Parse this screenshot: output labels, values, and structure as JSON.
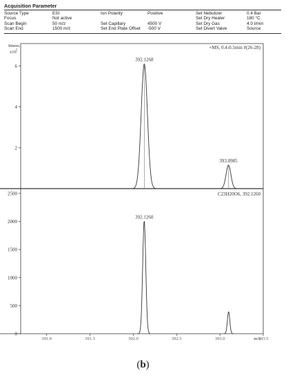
{
  "acquisition": {
    "title": "Acquisition Parameter",
    "rows": [
      [
        "Source Type",
        "ESI",
        "Ion Polarity",
        "Positive",
        "Set Nebulizer",
        "0.4 Bar"
      ],
      [
        "Focus",
        "Not active",
        "",
        "",
        "Set Dry Heater",
        "180 °C"
      ],
      [
        "Scan Begin",
        "50 m/z",
        "Set Capillary",
        "4500 V",
        "Set Dry Gas",
        "4.0 l/min"
      ],
      [
        "Scan End",
        "1500 m/z",
        "Set End Plate Offset",
        "-500 V",
        "Set Divert Valve",
        "Source"
      ]
    ]
  },
  "chart_data": [
    {
      "type": "line",
      "title": "+MS, 0.4-0.5min #(26-28)",
      "ylabel_top": "Intens.",
      "ylabel_exp": "x10",
      "ylabel_exp_power": "5",
      "ylim": [
        0,
        7.1
      ],
      "yticks": [
        0,
        2,
        4,
        6
      ],
      "ytick_labels": [
        "",
        "2",
        "4",
        "6"
      ],
      "xlim": [
        390.7,
        393.5
      ],
      "peaks": [
        {
          "x": 392.1268,
          "y": 6.1,
          "width": 0.036,
          "label": "392.1268"
        },
        {
          "x": 393.0985,
          "y": 1.15,
          "width": 0.028,
          "label": "393.0985"
        }
      ]
    },
    {
      "type": "line",
      "title": "C23H20O6, 392.1260",
      "ylim": [
        0,
        2560
      ],
      "yticks": [
        0,
        500,
        1000,
        1500,
        2000,
        2500
      ],
      "ytick_labels": [
        "0",
        "500",
        "1000",
        "1500",
        "2000",
        "2500"
      ],
      "xlim": [
        390.7,
        393.5
      ],
      "xticks": [
        391.0,
        391.5,
        392.0,
        392.5,
        393.0,
        393.5
      ],
      "xtick_labels": [
        "391.0",
        "391.5",
        "392.0",
        "392.5",
        "393.0",
        "393.5"
      ],
      "xlabel": "m/z",
      "peaks": [
        {
          "x": 392.126,
          "y": 2000,
          "width": 0.018,
          "label": "392.1260"
        },
        {
          "x": 393.1,
          "y": 390,
          "width": 0.014,
          "label": ""
        }
      ]
    }
  ],
  "caption": {
    "open": "(",
    "bold": "b",
    "close": ")"
  }
}
